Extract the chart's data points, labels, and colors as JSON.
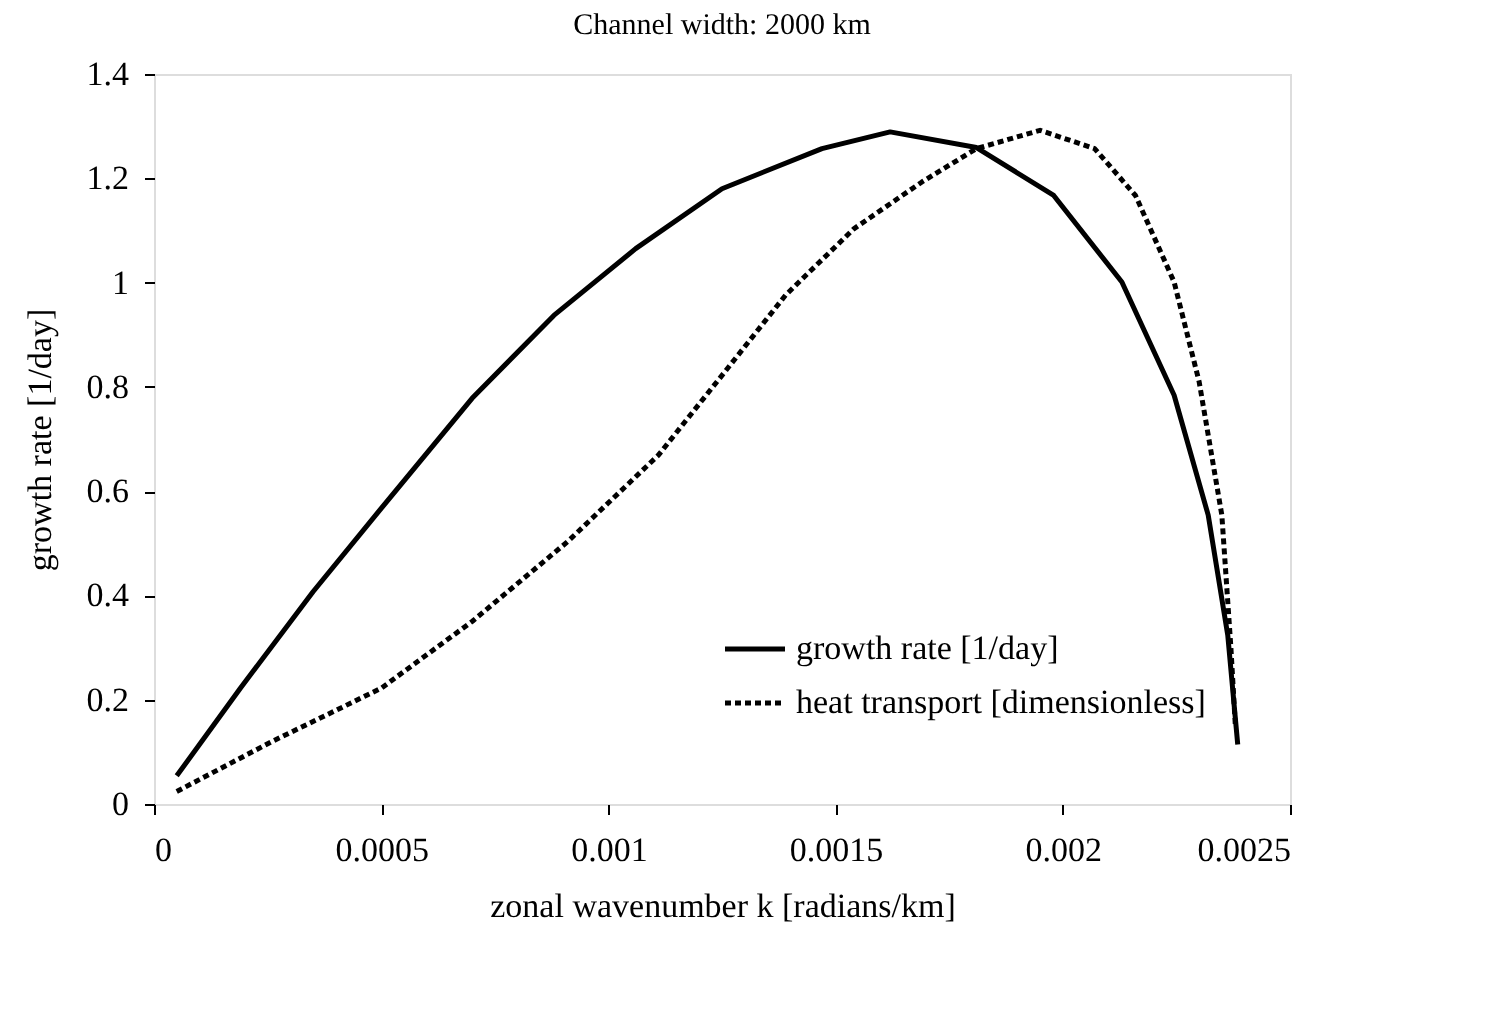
{
  "chart_data": {
    "type": "line",
    "title": "Channel width: 2000 km",
    "xlabel": "zonal wavenumber k [radians/km]",
    "ylabel": "growth rate [1/day]",
    "xlim": [
      0,
      0.0025
    ],
    "xticks": [
      0,
      0.0005,
      0.001,
      0.0015,
      0.002,
      0.0025
    ],
    "ylim": [
      0,
      1.4
    ],
    "yticks": [
      0,
      0.2,
      0.4,
      0.6,
      0.8,
      1,
      1.2,
      1.4
    ],
    "grid": false,
    "legend": "bottom right",
    "marker": "none",
    "series": [
      {
        "name": "growth rate [1/day]",
        "color": "#000000",
        "line_style": "solid",
        "x": [
          5e-05,
          0.00019,
          0.00035,
          0.0005,
          0.0007,
          0.00088,
          0.00106,
          0.00125,
          0.00147,
          0.00162,
          0.00181,
          0.00198,
          0.00213,
          0.002245,
          0.00232,
          0.002363,
          0.002385
        ],
        "values": [
          0.054,
          0.222,
          0.407,
          0.567,
          0.778,
          0.937,
          1.065,
          1.18,
          1.257,
          1.289,
          1.259,
          1.167,
          1.001,
          0.784,
          0.554,
          0.324,
          0.114
        ]
      },
      {
        "name": "heat transport [dimensionless]",
        "color": "#000000",
        "line_style": "dotted",
        "x": [
          5e-05,
          0.00026,
          0.0005,
          0.0007,
          0.00091,
          0.00111,
          0.00125,
          0.00139,
          0.00154,
          0.00169,
          0.00181,
          0.00195,
          0.00207,
          0.00216,
          0.002245,
          0.0023,
          0.00235,
          0.00237,
          0.00238
        ],
        "values": [
          0.024,
          0.12,
          0.222,
          0.35,
          0.503,
          0.669,
          0.822,
          0.976,
          1.103,
          1.193,
          1.257,
          1.292,
          1.257,
          1.167,
          1.001,
          0.81,
          0.554,
          0.299,
          0.146
        ]
      }
    ]
  }
}
